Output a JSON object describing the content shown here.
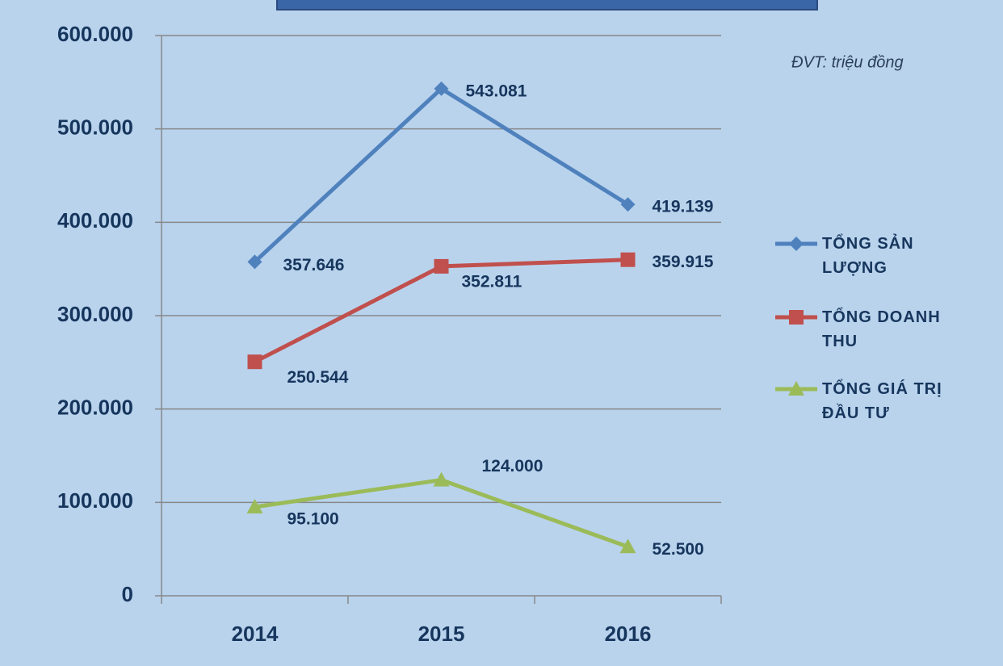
{
  "chart_data": {
    "type": "line",
    "note": "ĐVT: triệu đồng",
    "categories": [
      "2014",
      "2015",
      "2016"
    ],
    "series": [
      {
        "name": "TỔNG SẢN LƯỢNG",
        "color": "#4f81bd",
        "marker": "diamond",
        "values": [
          357646,
          543081,
          419139
        ],
        "value_labels": [
          "357.646",
          "543.081",
          "419.139"
        ]
      },
      {
        "name": "TỔNG DOANH THU",
        "color": "#c0504d",
        "marker": "square",
        "values": [
          250544,
          352811,
          359915
        ],
        "value_labels": [
          "250.544",
          "352.811",
          "359.915"
        ]
      },
      {
        "name": "TỔNG GIÁ TRỊ ĐẦU TƯ",
        "color": "#9bbb59",
        "marker": "triangle",
        "values": [
          95100,
          124000,
          52500
        ],
        "value_labels": [
          "95.100",
          "124.000",
          "52.500"
        ]
      }
    ],
    "ylim": [
      0,
      600000
    ],
    "yticks": [
      0,
      {
        "value": 100000,
        "label": "100.000"
      },
      {
        "value": 200000,
        "label": "200.000"
      },
      {
        "value": 300000,
        "label": "300.000"
      },
      {
        "value": 400000,
        "label": "400.000"
      },
      {
        "value": 500000,
        "label": "500.000"
      },
      {
        "value": 600000,
        "label": "600.000"
      }
    ],
    "grid": true,
    "legend": "right"
  }
}
